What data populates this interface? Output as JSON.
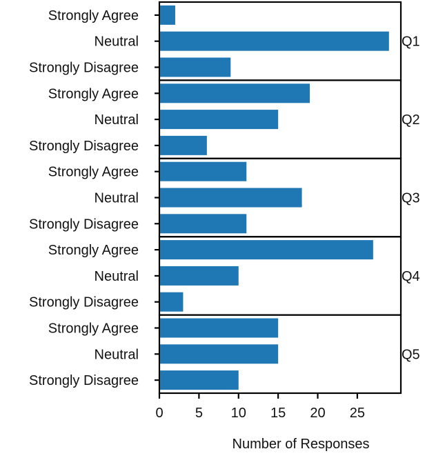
{
  "chart_data": {
    "type": "bar",
    "orientation": "horizontal",
    "xlabel": "Number of Responses",
    "ylabel": "",
    "xlim": [
      0,
      30.5
    ],
    "x_ticks": [
      0,
      5,
      10,
      15,
      20,
      25
    ],
    "categories": [
      "Strongly Agree",
      "Neutral",
      "Strongly Disagree"
    ],
    "panels": [
      {
        "label": "Q1",
        "values": [
          2,
          29,
          9
        ]
      },
      {
        "label": "Q2",
        "values": [
          19,
          15,
          6
        ]
      },
      {
        "label": "Q3",
        "values": [
          11,
          18,
          11
        ]
      },
      {
        "label": "Q4",
        "values": [
          27,
          10,
          3
        ]
      },
      {
        "label": "Q5",
        "values": [
          15,
          15,
          10
        ]
      }
    ],
    "bar_color": "#1f77b4",
    "grid": false,
    "legend": "none"
  }
}
